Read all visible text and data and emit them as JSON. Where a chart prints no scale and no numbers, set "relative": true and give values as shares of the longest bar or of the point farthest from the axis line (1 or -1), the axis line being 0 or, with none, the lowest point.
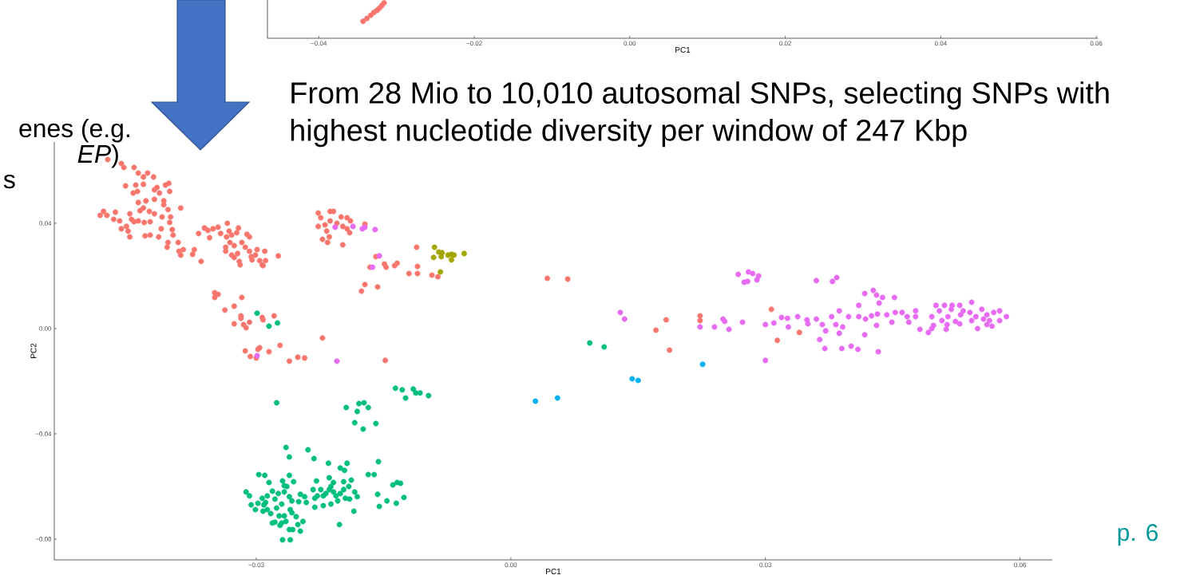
{
  "chart_data": [
    {
      "type": "scatter",
      "relative": true,
      "xlabel": "PC1",
      "xlim": [
        -0.0466,
        0.0602
      ],
      "xticks": [
        {
          "value": -0.04,
          "label": "−0.04"
        },
        {
          "value": -0.02,
          "label": "−0.02"
        },
        {
          "value": 0.0,
          "label": "0.00"
        },
        {
          "value": 0.02,
          "label": "0.02"
        },
        {
          "value": 0.04,
          "label": "0.04"
        },
        {
          "value": 0.06,
          "label": "0.06"
        }
      ],
      "series": [
        {
          "color": "#F8766D",
          "x": [
            -0.0343,
            -0.0338,
            -0.0333,
            -0.0329,
            -0.0325,
            -0.0322,
            -0.0319,
            -0.0316
          ],
          "values": [
            0.48,
            0.56,
            0.65,
            0.73,
            0.79,
            0.85,
            0.92,
            1.0
          ]
        }
      ]
    },
    {
      "type": "scatter",
      "title": "From 28 Mio to 10,010 autosomal SNPs, selecting SNPs with highest nucleotide diversity per window of 247 Kbp",
      "xlabel": "PC1",
      "ylabel": "PC2",
      "xlim": [
        -0.0538,
        0.0638
      ],
      "ylim": [
        -0.0879,
        0.0709
      ],
      "xticks": [
        {
          "value": -0.03,
          "label": "−0.03"
        },
        {
          "value": 0.0,
          "label": "0.00"
        },
        {
          "value": 0.03,
          "label": "0.03"
        },
        {
          "value": 0.06,
          "label": "0.06"
        }
      ],
      "yticks": [
        {
          "value": -0.08,
          "label": "−0.08"
        },
        {
          "value": -0.04,
          "label": "−0.04"
        },
        {
          "value": 0.0,
          "label": "0.00"
        },
        {
          "value": 0.04,
          "label": "0.04"
        }
      ],
      "annotations": [
        "enes (e.g.",
        "*EP*)",
        "s",
        "p. 6"
      ],
      "series": [
        {
          "color": "#F8766D",
          "x": [
            -0.0475,
            -0.0459,
            -0.0456,
            -0.0444,
            -0.0439,
            -0.0433,
            -0.0428,
            -0.0421,
            -0.0454,
            -0.0442,
            -0.0433,
            -0.0445,
            -0.044,
            -0.042,
            -0.0417,
            -0.0414,
            -0.0407,
            -0.0403,
            -0.0402,
            -0.042,
            -0.0409,
            -0.0439,
            -0.043,
            -0.0409,
            -0.0404,
            -0.0433,
            -0.0437,
            -0.0426,
            -0.042,
            -0.0484,
            -0.048,
            -0.0476,
            -0.0468,
            -0.0466,
            -0.0461,
            -0.0449,
            -0.0447,
            -0.0444,
            -0.0439,
            -0.0432,
            -0.0425,
            -0.0459,
            -0.0453,
            -0.0451,
            -0.0449,
            -0.0431,
            -0.0425,
            -0.0415,
            -0.0412,
            -0.0411,
            -0.0402,
            -0.0401,
            -0.0399,
            -0.0398,
            -0.0404,
            -0.0405,
            -0.0392,
            -0.0391,
            -0.0389,
            -0.0386,
            -0.0389,
            -0.0373,
            -0.0375,
            -0.0365,
            -0.0368,
            -0.0361,
            -0.0357,
            -0.0355,
            -0.0351,
            -0.0345,
            -0.0342,
            -0.0334,
            -0.0332,
            -0.0335,
            -0.0329,
            -0.0321,
            -0.0323,
            -0.0331,
            -0.0326,
            -0.0317,
            -0.0311,
            -0.0308,
            -0.0313,
            -0.0336,
            -0.0336,
            -0.0329,
            -0.0322,
            -0.0326,
            -0.032,
            -0.0319,
            -0.0308,
            -0.0306,
            -0.0301,
            -0.0299,
            -0.0305,
            -0.0296,
            -0.029,
            -0.0289,
            -0.0292,
            -0.0293,
            -0.0274,
            -0.0227,
            -0.0224,
            -0.0213,
            -0.0209,
            -0.02,
            -0.0193,
            -0.0189,
            -0.0219,
            -0.0227,
            -0.0213,
            -0.0205,
            -0.0198,
            -0.0193,
            -0.0217,
            -0.0222,
            -0.0214,
            -0.0216,
            -0.0198,
            -0.019,
            -0.0172,
            -0.0159,
            -0.0166,
            -0.0149,
            -0.0147,
            -0.0137,
            -0.0134,
            -0.0111,
            -0.011,
            -0.012,
            -0.011,
            -0.0093,
            -0.0086,
            -0.0172,
            -0.0176,
            -0.0157,
            -0.0349,
            -0.0345,
            -0.0349,
            -0.0317,
            -0.0326,
            -0.0337,
            -0.0318,
            -0.0318,
            -0.0326,
            -0.0315,
            -0.0312,
            -0.0308,
            -0.0293,
            -0.0292,
            -0.0279,
            -0.0222,
            -0.0272,
            -0.0296,
            -0.0298,
            -0.0313,
            -0.0307,
            -0.03,
            -0.0285,
            -0.0261,
            -0.0251,
            -0.0243,
            -0.0148,
            0.0043,
            0.0067,
            0.0183,
            0.0171,
            0.0187,
            0.0223,
            0.0223,
            0.0307,
            0.034,
            0.0314
          ],
          "values": [
            0.0642,
            0.0627,
            0.0612,
            0.0612,
            0.0591,
            0.0576,
            0.0591,
            0.0576,
            0.0542,
            0.0545,
            0.0548,
            0.0515,
            0.0521,
            0.0527,
            0.0536,
            0.0515,
            0.0545,
            0.0552,
            0.0521,
            0.0491,
            0.0485,
            0.0479,
            0.0485,
            0.047,
            0.0452,
            0.0458,
            0.0448,
            0.0445,
            0.0436,
            0.043,
            0.0445,
            0.043,
            0.0415,
            0.0442,
            0.0409,
            0.0436,
            0.0415,
            0.0406,
            0.0409,
            0.0403,
            0.0406,
            0.0379,
            0.0388,
            0.037,
            0.0348,
            0.0352,
            0.0355,
            0.0348,
            0.0379,
            0.0424,
            0.0403,
            0.0424,
            0.0376,
            0.0355,
            0.0327,
            0.0309,
            0.0327,
            0.0294,
            0.0279,
            0.03,
            0.0458,
            0.03,
            0.0282,
            0.0255,
            0.0361,
            0.0382,
            0.0373,
            0.0345,
            0.0379,
            0.0385,
            0.0361,
            0.04,
            0.037,
            0.0348,
            0.0355,
            0.0382,
            0.0364,
            0.0327,
            0.0315,
            0.0327,
            0.0358,
            0.0348,
            0.0309,
            0.0294,
            0.0309,
            0.0279,
            0.0285,
            0.027,
            0.0255,
            0.0242,
            0.0294,
            0.0273,
            0.0279,
            0.03,
            0.0261,
            0.0258,
            0.0294,
            0.0258,
            0.0239,
            0.0242,
            0.0276,
            0.0439,
            0.0421,
            0.0445,
            0.0445,
            0.0424,
            0.0421,
            0.0409,
            0.0394,
            0.0388,
            0.0409,
            0.04,
            0.0388,
            0.0379,
            0.037,
            0.0339,
            0.0348,
            0.0327,
            0.0318,
            0.0364,
            0.0397,
            0.0273,
            0.0233,
            0.0245,
            0.0233,
            0.0239,
            0.0248,
            0.0309,
            0.0236,
            0.0209,
            0.0209,
            0.0203,
            0.0197,
            0.0167,
            0.0142,
            0.0158,
            0.0136,
            0.013,
            0.0118,
            0.0118,
            0.0085,
            0.007,
            0.0048,
            0.0039,
            0.0018,
            0.0015,
            0.0003,
            0.0024,
            0.0042,
            0.0033,
            0.0048,
            -0.0036,
            -0.0064,
            -0.0073,
            -0.0079,
            -0.0085,
            -0.0106,
            -0.0112,
            -0.0088,
            -0.0124,
            -0.0109,
            -0.0112,
            -0.0121,
            0.0191,
            0.0188,
            0.0033,
            -0.0006,
            -0.0082,
            0.0048,
            0.003,
            0.0073,
            -0.0015,
            -0.0045
          ]
        },
        {
          "color": "#A3A500",
          "x": [
            -0.009,
            -0.0091,
            -0.0085,
            -0.0083,
            -0.0081,
            -0.0082,
            -0.0074,
            -0.007,
            -0.0067,
            -0.007,
            -0.0055
          ],
          "values": [
            0.0309,
            0.027,
            0.0291,
            0.0215,
            0.0288,
            0.0273,
            0.0279,
            0.0282,
            0.0279,
            0.0261,
            0.0285
          ]
        },
        {
          "color": "#00BF7D",
          "x": [
            -0.0299,
            -0.0285,
            -0.0275,
            0.0093,
            0.011,
            -0.0276,
            -0.0136,
            -0.0128,
            -0.0115,
            -0.0112,
            -0.0107,
            -0.0097,
            -0.0124,
            -0.0194,
            -0.0179,
            -0.0173,
            -0.0181,
            -0.0168,
            -0.0184,
            -0.0174,
            -0.0159,
            -0.0265,
            -0.0261,
            -0.0239,
            -0.0232,
            -0.0215,
            -0.0201,
            -0.0193,
            -0.0196,
            -0.0156,
            -0.0168,
            -0.0161,
            -0.0297,
            -0.029,
            -0.0261,
            -0.0269,
            -0.0256,
            -0.0285,
            -0.0267,
            -0.0214,
            -0.0229,
            -0.0209,
            -0.0197,
            -0.0188,
            -0.0139,
            -0.0134,
            -0.013,
            -0.0312,
            -0.0308,
            -0.0293,
            -0.0287,
            -0.0281,
            -0.0278,
            -0.0274,
            -0.0267,
            -0.0264,
            -0.0261,
            -0.0258,
            -0.025,
            -0.0248,
            -0.0243,
            -0.0241,
            -0.0306,
            -0.0298,
            -0.0301,
            -0.0291,
            -0.0289,
            -0.0287,
            -0.0292,
            -0.0283,
            -0.0276,
            -0.027,
            -0.026,
            -0.0258,
            -0.0273,
            -0.0267,
            -0.0265,
            -0.0253,
            -0.0281,
            -0.0278,
            -0.0272,
            -0.027,
            -0.0261,
            -0.0257,
            -0.0251,
            -0.0248,
            -0.0245,
            -0.0269,
            -0.026,
            -0.0233,
            -0.0231,
            -0.0228,
            -0.0224,
            -0.0221,
            -0.0231,
            -0.0221,
            -0.0218,
            -0.0214,
            -0.0212,
            -0.0212,
            -0.0209,
            -0.0206,
            -0.0204,
            -0.0201,
            -0.0197,
            -0.0195,
            -0.0191,
            -0.019,
            -0.0184,
            -0.0181,
            -0.0185,
            -0.0202,
            -0.0157,
            -0.0155,
            -0.0146,
            -0.0135,
            -0.0126
          ],
          "values": [
            0.0058,
            0.0009,
            0.0021,
            -0.0055,
            -0.007,
            -0.0282,
            -0.0227,
            -0.0233,
            -0.023,
            -0.0245,
            -0.0245,
            -0.0255,
            -0.0264,
            -0.03,
            -0.0285,
            -0.0282,
            -0.0315,
            -0.03,
            -0.0358,
            -0.0382,
            -0.0361,
            -0.0452,
            -0.0488,
            -0.0461,
            -0.0494,
            -0.0512,
            -0.053,
            -0.0512,
            -0.0539,
            -0.0506,
            -0.0555,
            -0.0555,
            -0.0555,
            -0.0558,
            -0.0558,
            -0.0579,
            -0.0582,
            -0.0585,
            -0.0597,
            -0.0567,
            -0.0579,
            -0.0585,
            -0.0582,
            -0.0576,
            -0.0594,
            -0.0585,
            -0.0588,
            -0.0621,
            -0.0636,
            -0.0645,
            -0.0636,
            -0.0618,
            -0.0648,
            -0.0627,
            -0.0621,
            -0.06,
            -0.0639,
            -0.0655,
            -0.0658,
            -0.063,
            -0.0639,
            -0.0661,
            -0.067,
            -0.0664,
            -0.0688,
            -0.067,
            -0.0661,
            -0.0688,
            -0.0694,
            -0.0703,
            -0.0682,
            -0.0667,
            -0.0688,
            -0.07,
            -0.0712,
            -0.0712,
            -0.0733,
            -0.0715,
            -0.0739,
            -0.0736,
            -0.0748,
            -0.0739,
            -0.0764,
            -0.0764,
            -0.0745,
            -0.077,
            -0.0733,
            -0.0803,
            -0.0803,
            -0.0612,
            -0.0645,
            -0.0636,
            -0.0612,
            -0.0636,
            -0.0679,
            -0.0673,
            -0.0627,
            -0.0612,
            -0.06,
            -0.0667,
            -0.0621,
            -0.0636,
            -0.0655,
            -0.0627,
            -0.0612,
            -0.0645,
            -0.06,
            -0.0648,
            -0.0621,
            -0.0639,
            -0.0694,
            -0.0745,
            -0.063,
            -0.0676,
            -0.0655,
            -0.0664,
            -0.0642
          ]
        },
        {
          "color": "#00B0F6",
          "x": [
            0.0029,
            0.0055,
            0.0143,
            0.015,
            0.0226
          ],
          "values": [
            -0.0276,
            -0.0264,
            -0.0191,
            -0.0197,
            -0.0136
          ]
        },
        {
          "color": "#E76BF3",
          "x": [
            -0.0207,
            -0.0186,
            -0.0175,
            -0.0172,
            -0.016,
            -0.0155,
            -0.0163,
            -0.0299,
            -0.0205,
            0.0129,
            0.0134,
            0.0223,
            0.024,
            0.025,
            0.0252,
            0.0257,
            0.0273,
            0.0268,
            0.028,
            0.0285,
            0.0292,
            0.0275,
            0.0279,
            0.029,
            0.03,
            0.03,
            0.036,
            0.0384,
            0.0379,
            0.031,
            0.0319,
            0.0326,
            0.0327,
            0.0338,
            0.0349,
            0.035,
            0.036,
            0.0367,
            0.0371,
            0.0364,
            0.037,
            0.0378,
            0.0387,
            0.0383,
            0.0387,
            0.0391,
            0.039,
            0.0398,
            0.0401,
            0.0409,
            0.041,
            0.041,
            0.0417,
            0.0418,
            0.0417,
            0.0427,
            0.0431,
            0.0438,
            0.0434,
            0.0425,
            0.0432,
            0.0431,
            0.0433,
            0.0443,
            0.0449,
            0.0452,
            0.0453,
            0.0461,
            0.0467,
            0.0469,
            0.0477,
            0.0477,
            0.0482,
            0.0492,
            0.0496,
            0.0498,
            0.0501,
            0.0505,
            0.0508,
            0.0511,
            0.0513,
            0.0515,
            0.0519,
            0.052,
            0.0524,
            0.0529,
            0.053,
            0.0533,
            0.0529,
            0.0543,
            0.0541,
            0.0543,
            0.055,
            0.0555,
            0.0557,
            0.0561,
            0.0561,
            0.0567,
            0.0569,
            0.0576,
            0.0576,
            0.0584,
            0.0564,
            0.0548,
            0.0514,
            0.0496
          ],
          "values": [
            0.0385,
            0.0388,
            0.0379,
            0.0385,
            0.0376,
            0.0276,
            0.0233,
            -0.0103,
            -0.0124,
            0.0061,
            0.0036,
            0.0006,
            0.0006,
            0.0036,
            0.0027,
            -0.0003,
            0.0024,
            0.0206,
            0.0215,
            0.0209,
            0.02,
            0.0176,
            0.0179,
            0.0185,
            -0.0121,
            0.0015,
            0.0182,
            0.0194,
            0.0179,
            0.0021,
            0.0042,
            0.0039,
            0.0006,
            0.0045,
            0.0033,
            0.0018,
            0.0036,
            0.0015,
            -0.0009,
            -0.0042,
            -0.0076,
            0.0045,
            0.0067,
            0.0015,
            -0.0018,
            0.0006,
            -0.0076,
            0.0045,
            -0.0067,
            -0.0079,
            0.0088,
            0.0045,
            -0.0024,
            0.0036,
            0.0133,
            0.0145,
            0.0127,
            0.0118,
            0.0097,
            0.0048,
            0.0055,
            0.0012,
            -0.0088,
            0.0052,
            0.0024,
            0.0118,
            0.0061,
            0.0061,
            0.0045,
            0.0024,
            0.0067,
            0.0045,
            -0.0003,
            -0.0015,
            0.0045,
            0.0012,
            0.0088,
            0.0067,
            0.003,
            0.0088,
            -0.0003,
            0.0045,
            0.0073,
            0.0088,
            0.0027,
            0.0088,
            0.0052,
            0.0067,
            0.0018,
            0.01,
            0.0061,
            0.003,
            0.0,
            0.0073,
            0.0036,
            0.0052,
            0.0015,
            0.0009,
            0.0061,
            0.0067,
            0.003,
            0.0045,
            0.003,
            0.0045,
            0.0015,
            0.0
          ]
        }
      ]
    }
  ]
}
